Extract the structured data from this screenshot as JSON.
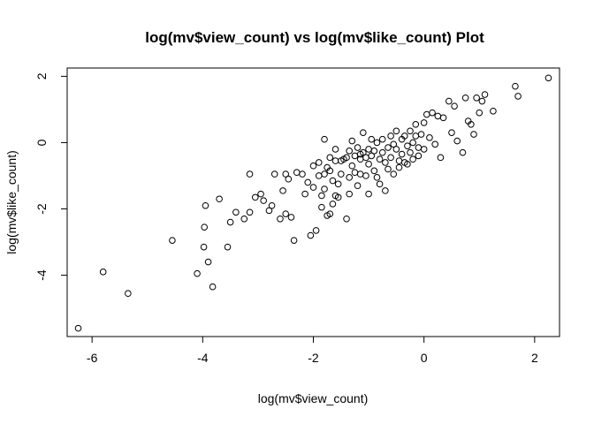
{
  "chart_data": {
    "type": "scatter",
    "title": "log(mv$view_count) vs log(mv$like_count) Plot",
    "xlabel": "log(mv$view_count)",
    "ylabel": "log(mv$like_count)",
    "xlim": [
      -6.45,
      2.45
    ],
    "ylim": [
      -5.85,
      2.25
    ],
    "xticks": [
      -6,
      -4,
      -2,
      0,
      2
    ],
    "yticks": [
      -4,
      -2,
      0,
      2
    ],
    "xtick_labels": [
      "-6",
      "-4",
      "-2",
      "0",
      "2"
    ],
    "ytick_labels": [
      "-4",
      "-2",
      "0",
      "2"
    ],
    "grid": false,
    "legend": false,
    "points": [
      [
        -6.25,
        -5.6
      ],
      [
        -5.8,
        -3.9
      ],
      [
        -5.35,
        -4.55
      ],
      [
        -4.55,
        -2.95
      ],
      [
        -4.1,
        -3.95
      ],
      [
        -3.98,
        -3.15
      ],
      [
        -3.97,
        -2.55
      ],
      [
        -3.95,
        -1.9
      ],
      [
        -3.9,
        -3.6
      ],
      [
        -3.82,
        -4.35
      ],
      [
        -3.7,
        -1.7
      ],
      [
        -3.55,
        -3.15
      ],
      [
        -3.5,
        -2.4
      ],
      [
        -3.4,
        -2.1
      ],
      [
        -3.25,
        -2.3
      ],
      [
        -3.15,
        -2.1
      ],
      [
        -3.15,
        -0.95
      ],
      [
        -3.05,
        -1.65
      ],
      [
        -2.95,
        -1.55
      ],
      [
        -2.9,
        -1.75
      ],
      [
        -2.8,
        -2.05
      ],
      [
        -2.75,
        -1.9
      ],
      [
        -2.7,
        -0.95
      ],
      [
        -2.6,
        -2.3
      ],
      [
        -2.55,
        -1.45
      ],
      [
        -2.5,
        -0.95
      ],
      [
        -2.5,
        -2.15
      ],
      [
        -2.45,
        -1.1
      ],
      [
        -2.4,
        -2.25
      ],
      [
        -2.35,
        -2.95
      ],
      [
        -2.3,
        -0.9
      ],
      [
        -2.2,
        -0.95
      ],
      [
        -2.15,
        -1.55
      ],
      [
        -2.1,
        -1.2
      ],
      [
        -2.05,
        -2.8
      ],
      [
        -2.0,
        -1.35
      ],
      [
        -2.0,
        -0.7
      ],
      [
        -1.95,
        -2.65
      ],
      [
        -1.9,
        -1.0
      ],
      [
        -1.9,
        -0.6
      ],
      [
        -1.85,
        -1.95
      ],
      [
        -1.85,
        -1.6
      ],
      [
        -1.8,
        -1.4
      ],
      [
        -1.8,
        -0.95
      ],
      [
        -1.8,
        0.1
      ],
      [
        -1.75,
        -2.2
      ],
      [
        -1.75,
        -0.75
      ],
      [
        -1.7,
        -2.15
      ],
      [
        -1.7,
        -0.45
      ],
      [
        -1.7,
        -0.85
      ],
      [
        -1.65,
        -1.85
      ],
      [
        -1.65,
        -1.15
      ],
      [
        -1.6,
        -1.6
      ],
      [
        -1.6,
        -0.2
      ],
      [
        -1.6,
        -0.55
      ],
      [
        -1.55,
        -1.25
      ],
      [
        -1.55,
        -1.65
      ],
      [
        -1.5,
        -0.95
      ],
      [
        -1.5,
        -0.55
      ],
      [
        -1.45,
        -0.5
      ],
      [
        -1.4,
        -2.3
      ],
      [
        -1.4,
        -0.45
      ],
      [
        -1.35,
        -0.25
      ],
      [
        -1.35,
        -1.05
      ],
      [
        -1.35,
        -1.55
      ],
      [
        -1.3,
        0.05
      ],
      [
        -1.3,
        -0.7
      ],
      [
        -1.25,
        -0.4
      ],
      [
        -1.25,
        -0.9
      ],
      [
        -1.2,
        -1.3
      ],
      [
        -1.2,
        -0.15
      ],
      [
        -1.15,
        -0.35
      ],
      [
        -1.15,
        -0.5
      ],
      [
        -1.15,
        -0.95
      ],
      [
        -1.1,
        -0.3
      ],
      [
        -1.1,
        0.3
      ],
      [
        -1.05,
        -0.45
      ],
      [
        -1.05,
        -1.0
      ],
      [
        -1.0,
        -0.2
      ],
      [
        -1.0,
        -0.65
      ],
      [
        -1.0,
        -1.55
      ],
      [
        -0.95,
        0.1
      ],
      [
        -0.95,
        -0.4
      ],
      [
        -0.9,
        -0.85
      ],
      [
        -0.9,
        -0.25
      ],
      [
        -0.85,
        0.0
      ],
      [
        -0.85,
        -1.05
      ],
      [
        -0.8,
        -0.5
      ],
      [
        -0.8,
        -1.25
      ],
      [
        -0.75,
        0.1
      ],
      [
        -0.75,
        -0.3
      ],
      [
        -0.7,
        -0.6
      ],
      [
        -0.7,
        -1.45
      ],
      [
        -0.65,
        -0.15
      ],
      [
        -0.65,
        -0.8
      ],
      [
        -0.6,
        0.2
      ],
      [
        -0.6,
        -0.45
      ],
      [
        -0.55,
        -0.05
      ],
      [
        -0.55,
        -0.95
      ],
      [
        -0.5,
        0.35
      ],
      [
        -0.5,
        -0.2
      ],
      [
        -0.45,
        -0.55
      ],
      [
        -0.45,
        -0.75
      ],
      [
        -0.4,
        0.1
      ],
      [
        -0.4,
        -0.35
      ],
      [
        -0.35,
        -0.6
      ],
      [
        -0.35,
        0.2
      ],
      [
        -0.3,
        -0.1
      ],
      [
        -0.3,
        -0.65
      ],
      [
        -0.25,
        0.35
      ],
      [
        -0.25,
        -0.3
      ],
      [
        -0.2,
        0.0
      ],
      [
        -0.2,
        -0.5
      ],
      [
        -0.15,
        0.2
      ],
      [
        -0.15,
        0.55
      ],
      [
        -0.1,
        -0.15
      ],
      [
        -0.1,
        -0.4
      ],
      [
        -0.05,
        0.25
      ],
      [
        0.0,
        -0.2
      ],
      [
        0.0,
        0.6
      ],
      [
        0.05,
        0.85
      ],
      [
        0.1,
        0.15
      ],
      [
        0.15,
        0.9
      ],
      [
        0.2,
        -0.05
      ],
      [
        0.25,
        0.8
      ],
      [
        0.3,
        -0.45
      ],
      [
        0.35,
        0.75
      ],
      [
        0.45,
        1.25
      ],
      [
        0.5,
        0.3
      ],
      [
        0.55,
        1.1
      ],
      [
        0.6,
        0.05
      ],
      [
        0.7,
        -0.3
      ],
      [
        0.75,
        1.35
      ],
      [
        0.8,
        0.65
      ],
      [
        0.85,
        0.55
      ],
      [
        0.9,
        0.25
      ],
      [
        0.95,
        1.35
      ],
      [
        1.0,
        0.9
      ],
      [
        1.05,
        1.25
      ],
      [
        1.1,
        1.45
      ],
      [
        1.25,
        0.95
      ],
      [
        1.65,
        1.7
      ],
      [
        1.7,
        1.4
      ],
      [
        2.25,
        1.95
      ]
    ]
  }
}
